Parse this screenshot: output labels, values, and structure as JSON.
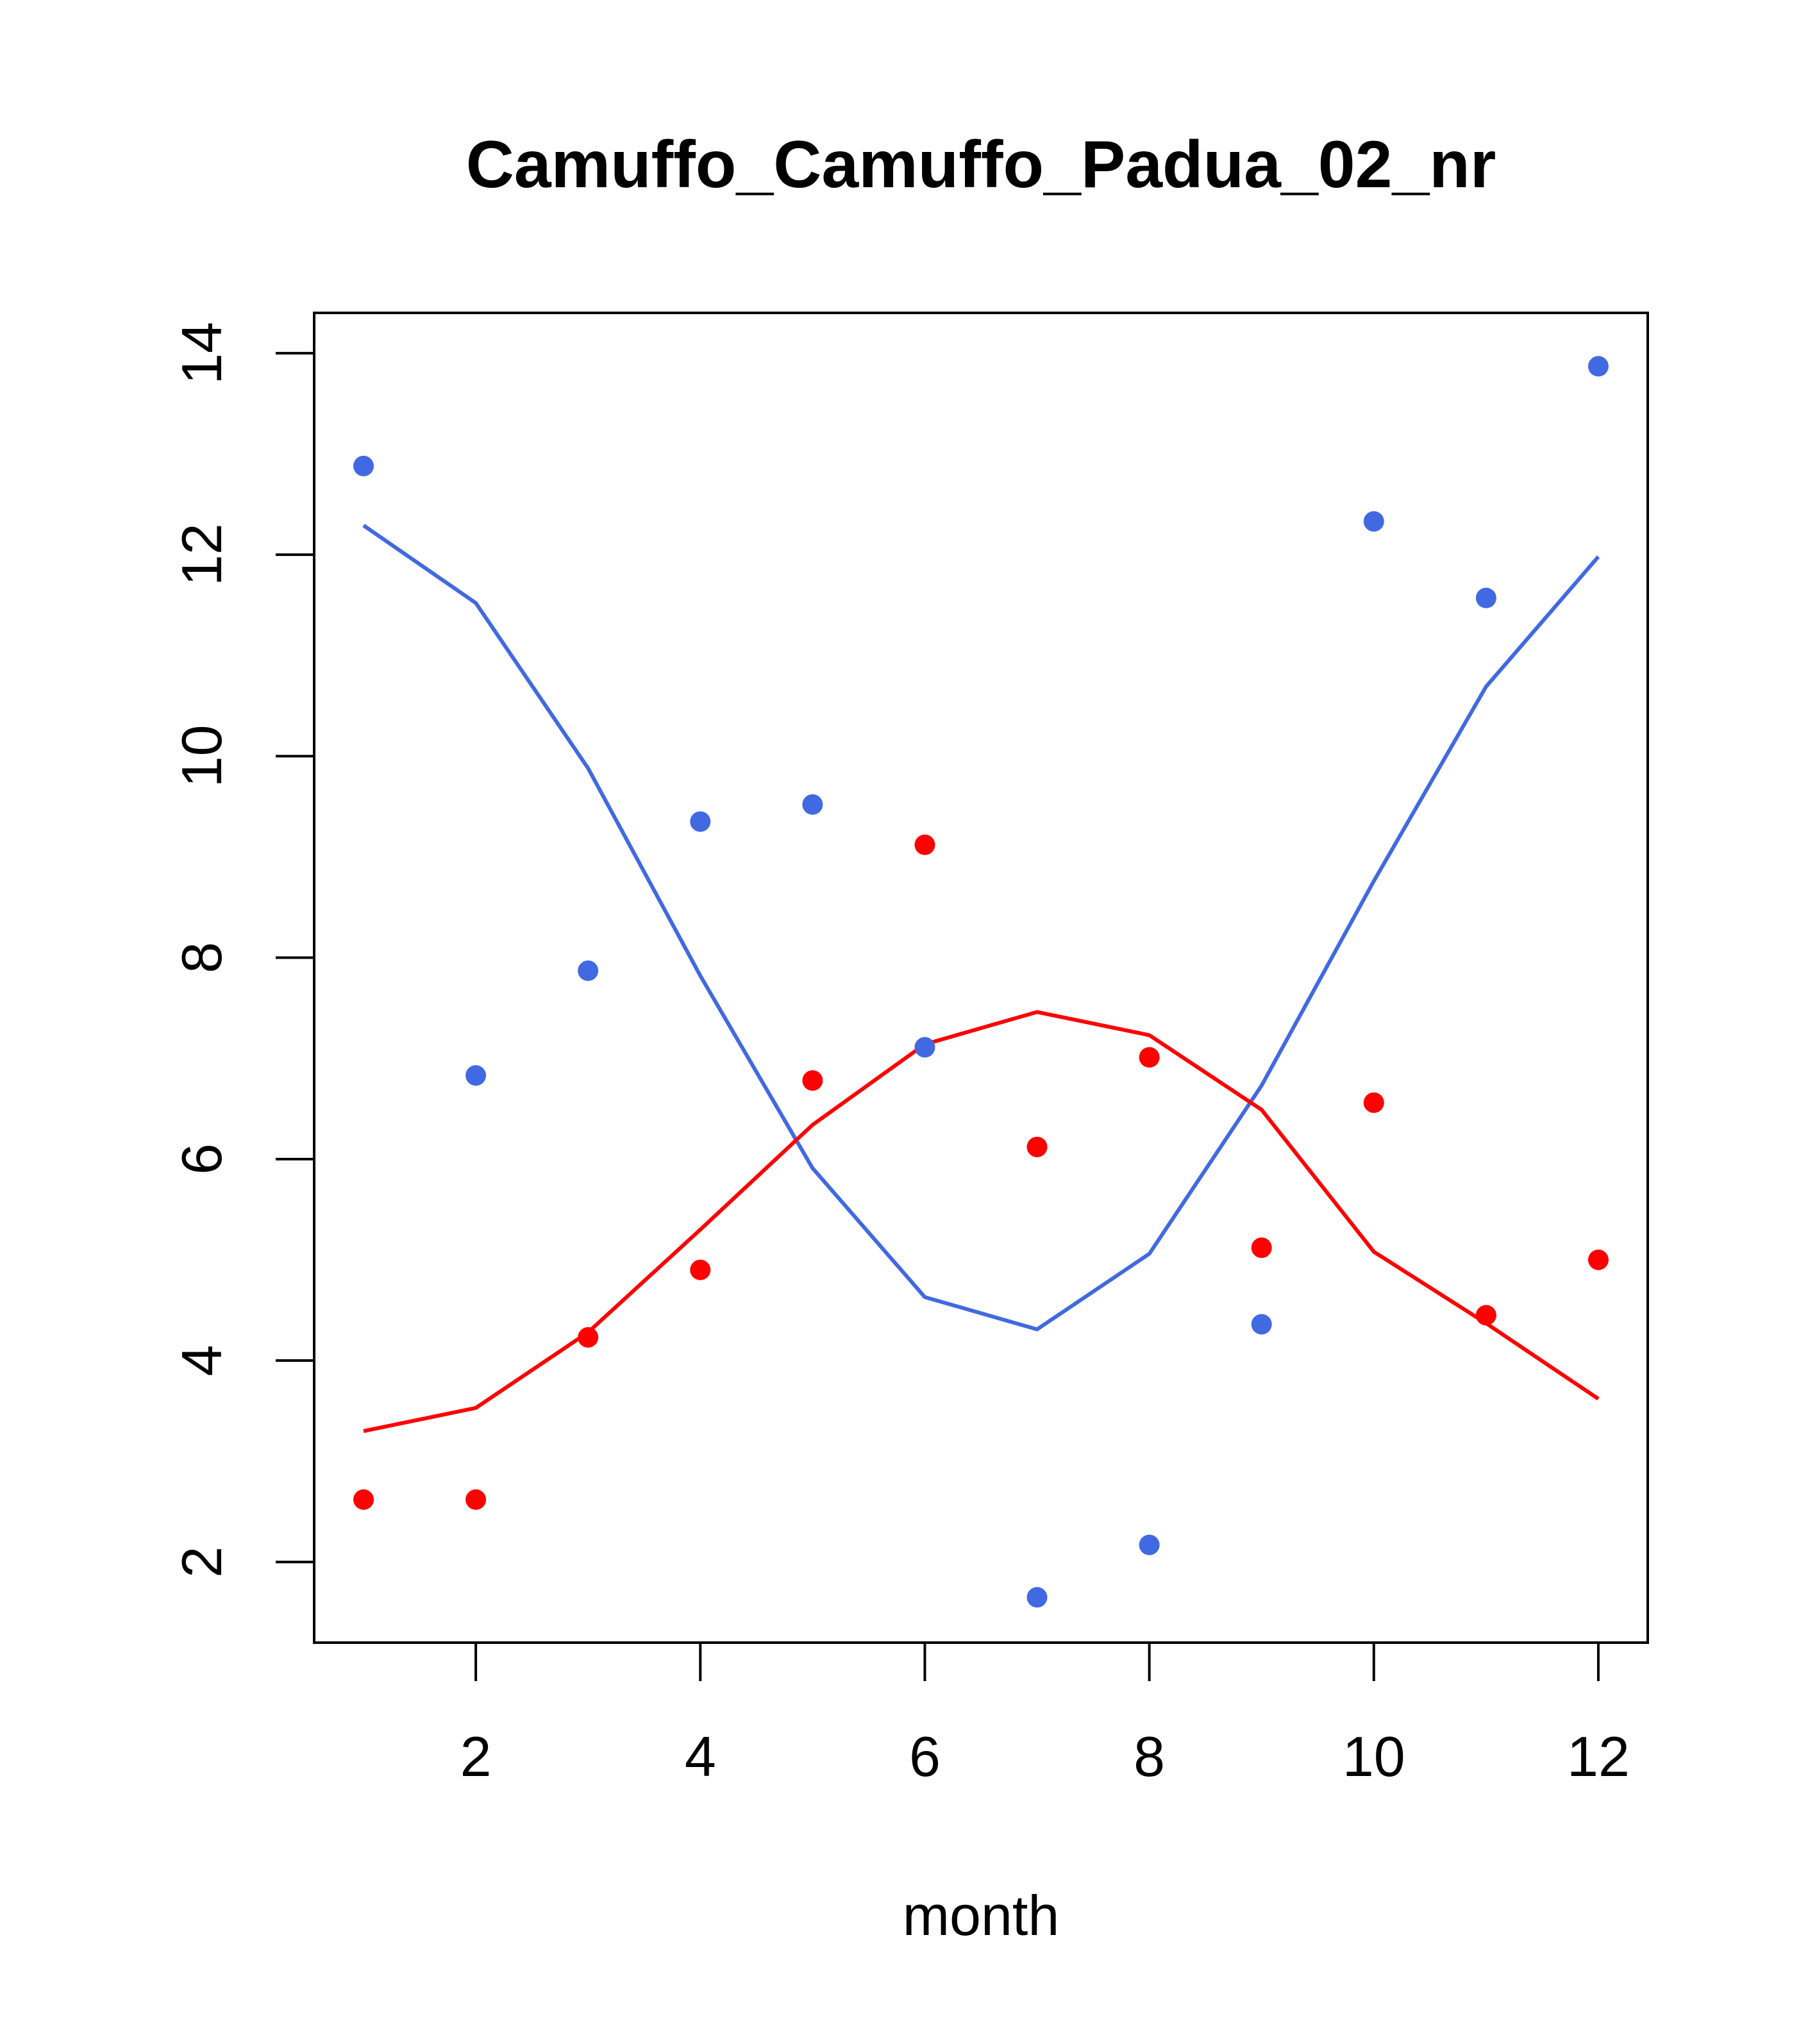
{
  "chart_data": {
    "type": "scatter",
    "title": "Camuffo_Camuffo_Padua_02_nr",
    "xlabel": "month",
    "ylabel": "",
    "xlim": [
      0.56,
      12.44
    ],
    "ylim": [
      1.2,
      14.4
    ],
    "x_ticks": [
      2,
      4,
      6,
      8,
      10,
      12
    ],
    "y_ticks": [
      2,
      4,
      6,
      8,
      10,
      12,
      14
    ],
    "grid": false,
    "x": [
      1,
      2,
      3,
      4,
      5,
      6,
      7,
      8,
      9,
      10,
      11,
      12
    ],
    "series": [
      {
        "name": "blue points",
        "kind": "points",
        "color": "#4169E1",
        "values": [
          12.88,
          6.83,
          7.87,
          9.35,
          9.52,
          7.11,
          1.65,
          2.17,
          4.36,
          12.33,
          11.57,
          13.87
        ]
      },
      {
        "name": "red points",
        "kind": "points",
        "color": "#FF0000",
        "values": [
          2.62,
          2.62,
          4.23,
          4.9,
          6.78,
          9.12,
          6.12,
          7.01,
          5.12,
          6.56,
          4.45,
          5.0
        ]
      },
      {
        "name": "blue fit",
        "kind": "line",
        "color": "#4169E1",
        "values": [
          12.29,
          11.52,
          9.88,
          7.82,
          5.91,
          4.63,
          4.31,
          5.06,
          6.73,
          8.76,
          10.69,
          11.98
        ]
      },
      {
        "name": "red fit",
        "kind": "line",
        "color": "#FF0000",
        "values": [
          3.3,
          3.53,
          4.28,
          5.3,
          6.34,
          7.14,
          7.46,
          7.23,
          6.49,
          5.08,
          4.37,
          3.62
        ]
      }
    ]
  }
}
